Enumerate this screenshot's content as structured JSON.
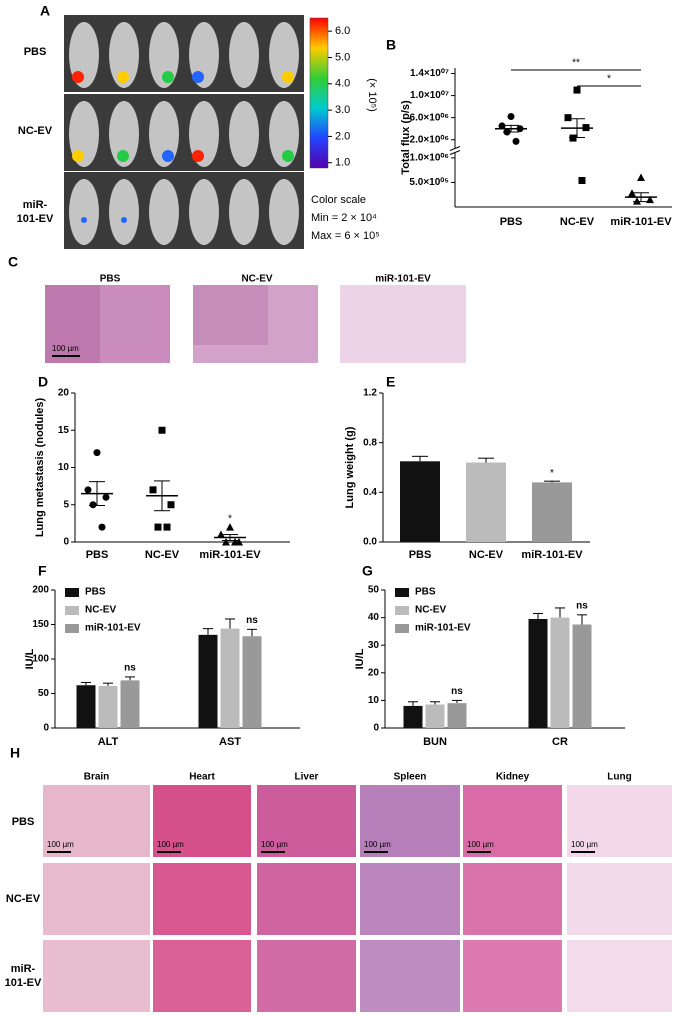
{
  "panel_letters": [
    "A",
    "B",
    "C",
    "D",
    "E",
    "F",
    "G",
    "H"
  ],
  "panel_a": {
    "row_labels": [
      "PBS",
      "NC-EV",
      "miR-101-EV"
    ],
    "colorbar": {
      "lim": [
        0.8,
        6.5
      ],
      "ticks": [
        {
          "value": 6,
          "label": "6.0"
        },
        {
          "value": 5,
          "label": "5.0"
        },
        {
          "value": 4,
          "label": "4.0"
        },
        {
          "value": 3,
          "label": "3.0"
        },
        {
          "value": 2,
          "label": "2.0"
        },
        {
          "value": 1,
          "label": "1.0"
        }
      ],
      "unit": "(× 10⁵)"
    },
    "color_scale": {
      "title": "Color scale",
      "min": "Min = 2 × 10⁴",
      "max": "Max = 6 × 10⁵"
    }
  },
  "chart_data": [
    {
      "type": "dot-plot-broken",
      "ylabel": "Total flux (p/s)",
      "categories": [
        "PBS",
        "NC-EV",
        "miR-101-EV"
      ],
      "markers": [
        "circle",
        "square",
        "triangle"
      ],
      "color": "#000000",
      "segments": [
        {
          "ylim": [
            0,
            1100000
          ],
          "yticks": [
            {
              "value": 500000,
              "label": "5.0×10⁰⁵"
            },
            {
              "value": 1000000,
              "label": "1.0×10⁰⁶"
            }
          ]
        },
        {
          "ylim": [
            500000,
            15000000
          ],
          "yticks": [
            {
              "value": 2000000,
              "label": "2.0×10⁰⁶"
            },
            {
              "value": 6000000,
              "label": "6.0×10⁰⁶"
            },
            {
              "value": 10000000,
              "label": "1.0×10⁰⁷"
            },
            {
              "value": 14000000,
              "label": "1.4×10⁰⁷"
            }
          ]
        }
      ],
      "points": [
        [
          6200000,
          4500000,
          4000000,
          3400000,
          1700000
        ],
        [
          11000000,
          6000000,
          4200000,
          2300000,
          540000
        ],
        [
          600000,
          280000,
          150000,
          120000
        ]
      ],
      "mean": [
        4000000,
        4100000,
        200000
      ],
      "sem": [
        600000,
        1700000,
        90000
      ],
      "annotations": [
        {
          "text": "**",
          "from": 0,
          "to": 2
        },
        {
          "text": "*",
          "from": 1,
          "to": 2
        }
      ]
    },
    {
      "type": "dot-plot",
      "ylabel": "Lung metastasis (nodules)",
      "categories": [
        "PBS",
        "NC-EV",
        "miR-101-EV"
      ],
      "markers": [
        "circle",
        "square",
        "triangle"
      ],
      "color": "#000000",
      "ylim": [
        0,
        20
      ],
      "yticks": [
        0,
        5,
        10,
        15,
        20
      ],
      "points": [
        [
          12,
          7,
          6,
          5,
          2
        ],
        [
          15,
          7,
          5,
          2,
          2
        ],
        [
          2,
          1,
          0,
          0,
          0
        ]
      ],
      "mean": [
        6.5,
        6.2,
        0.6
      ],
      "sem": [
        1.6,
        2.0,
        0.4
      ],
      "annotations": [
        {
          "text": "*",
          "category": 2
        }
      ]
    },
    {
      "type": "bar",
      "ylabel": "Lung weight (g)",
      "categories": [
        "PBS",
        "NC-EV",
        "miR-101-EV"
      ],
      "values": [
        0.65,
        0.64,
        0.48
      ],
      "errors": [
        0.04,
        0.035,
        0.01
      ],
      "colors": [
        "#111111",
        "#bbbbbb",
        "#999999"
      ],
      "ylim": [
        0,
        1.2
      ],
      "yticks": [
        {
          "value": 0,
          "label": "0.0"
        },
        0.4,
        0.8,
        1.2
      ],
      "annotations": [
        {
          "text": "*",
          "category": 2
        }
      ]
    },
    {
      "type": "grouped-bar",
      "ylabel": "IU/L",
      "categories": [
        "ALT",
        "AST"
      ],
      "legend": "top-left",
      "series": [
        {
          "name": "PBS",
          "color": "#111111",
          "values": [
            62,
            135
          ],
          "errors": [
            4,
            9
          ]
        },
        {
          "name": "NC-EV",
          "color": "#bbbbbb",
          "values": [
            61,
            144
          ],
          "errors": [
            4,
            14
          ]
        },
        {
          "name": "miR-101-EV",
          "color": "#999999",
          "values": [
            69,
            133
          ],
          "errors": [
            5,
            10
          ]
        }
      ],
      "ylim": [
        0,
        200
      ],
      "yticks": [
        0,
        50,
        100,
        150,
        200
      ],
      "annotations": [
        {
          "text": "ns",
          "series": 2,
          "category": 0
        },
        {
          "text": "ns",
          "series": 2,
          "category": 1
        }
      ]
    },
    {
      "type": "grouped-bar",
      "ylabel": "IU/L",
      "categories": [
        "BUN",
        "CR"
      ],
      "legend": "top-left",
      "series": [
        {
          "name": "PBS",
          "color": "#111111",
          "values": [
            8,
            39.5
          ],
          "errors": [
            1.5,
            2
          ]
        },
        {
          "name": "NC-EV",
          "color": "#bbbbbb",
          "values": [
            8.5,
            40
          ],
          "errors": [
            1,
            3.5
          ]
        },
        {
          "name": "miR-101-EV",
          "color": "#999999",
          "values": [
            9,
            37.5
          ],
          "errors": [
            1,
            3.5
          ]
        }
      ],
      "ylim": [
        0,
        50
      ],
      "yticks": [
        0,
        10,
        20,
        30,
        40,
        50
      ],
      "annotations": [
        {
          "text": "ns",
          "series": 2,
          "category": 0
        },
        {
          "text": "ns",
          "series": 2,
          "category": 1
        }
      ]
    }
  ],
  "panel_c": {
    "labels": [
      "PBS",
      "NC-EV",
      "miR-101-EV"
    ],
    "scale_bar": "100 µm"
  },
  "panel_h": {
    "columns": [
      "Brain",
      "Heart",
      "Liver",
      "Spleen",
      "Kidney",
      "Lung"
    ],
    "rows": [
      "PBS",
      "NC-EV",
      "miR-101-EV"
    ],
    "scale_bars": [
      "100 µm",
      "100 µm",
      "100 µm",
      "100 µm",
      "100 µm",
      "100 µm"
    ]
  }
}
